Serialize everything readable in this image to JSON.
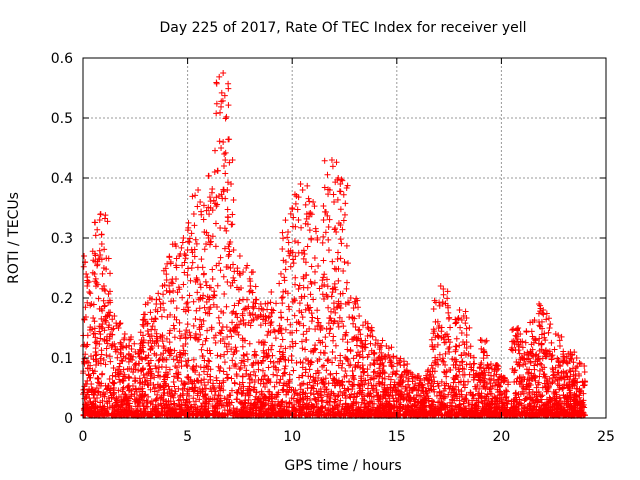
{
  "chart_data": {
    "type": "scatter",
    "title": "Day 225 of 2017, Rate Of TEC Index for receiver yell",
    "xlabel": "GPS time / hours",
    "ylabel": "ROTI / TECUs",
    "xlim": [
      0,
      25
    ],
    "ylim": [
      0,
      0.6
    ],
    "xticks": [
      0,
      5,
      10,
      15,
      20,
      25
    ],
    "yticks": [
      0,
      0.1,
      0.2,
      0.3,
      0.4,
      0.5,
      0.6
    ],
    "xtick_labels": [
      "0",
      "5",
      "10",
      "15",
      "20",
      "25"
    ],
    "ytick_labels": [
      "0",
      "0.1",
      "0.2",
      "0.3",
      "0.4",
      "0.5",
      "0.6"
    ],
    "grid": true,
    "marker": "+",
    "color": "#ff0000",
    "x_range_of_data": [
      0,
      24
    ],
    "points": [
      [
        0.0,
        0.12
      ],
      [
        0.05,
        0.27
      ],
      [
        0.1,
        0.26
      ],
      [
        0.15,
        0.24
      ],
      [
        0.2,
        0.22
      ],
      [
        0.3,
        0.21
      ],
      [
        0.4,
        0.19
      ],
      [
        0.5,
        0.14
      ],
      [
        0.6,
        0.11
      ],
      [
        0.8,
        0.33
      ],
      [
        0.85,
        0.34
      ],
      [
        0.9,
        0.29
      ],
      [
        1.0,
        0.25
      ],
      [
        1.0,
        0.22
      ],
      [
        1.1,
        0.16
      ],
      [
        1.3,
        0.14
      ],
      [
        1.5,
        0.17
      ],
      [
        1.7,
        0.15
      ],
      [
        2.0,
        0.14
      ],
      [
        2.2,
        0.12
      ],
      [
        2.5,
        0.11
      ],
      [
        2.8,
        0.13
      ],
      [
        3.0,
        0.16
      ],
      [
        3.2,
        0.2
      ],
      [
        3.5,
        0.19
      ],
      [
        3.8,
        0.22
      ],
      [
        4.0,
        0.23
      ],
      [
        4.2,
        0.26
      ],
      [
        4.4,
        0.29
      ],
      [
        4.6,
        0.27
      ],
      [
        4.8,
        0.3
      ],
      [
        5.0,
        0.28
      ],
      [
        5.2,
        0.25
      ],
      [
        5.3,
        0.34
      ],
      [
        5.5,
        0.38
      ],
      [
        5.6,
        0.36
      ],
      [
        5.8,
        0.31
      ],
      [
        6.0,
        0.3
      ],
      [
        6.1,
        0.35
      ],
      [
        6.3,
        0.41
      ],
      [
        6.5,
        0.37
      ],
      [
        6.6,
        0.45
      ],
      [
        6.7,
        0.46
      ],
      [
        6.75,
        0.44
      ],
      [
        6.8,
        0.43
      ],
      [
        6.9,
        0.38
      ],
      [
        6.7,
        0.575
      ],
      [
        7.0,
        0.29
      ],
      [
        7.2,
        0.28
      ],
      [
        7.5,
        0.27
      ],
      [
        7.8,
        0.25
      ],
      [
        8.0,
        0.22
      ],
      [
        8.5,
        0.19
      ],
      [
        9.0,
        0.21
      ],
      [
        9.5,
        0.2
      ],
      [
        9.7,
        0.26
      ],
      [
        9.8,
        0.31
      ],
      [
        10.0,
        0.35
      ],
      [
        10.2,
        0.37
      ],
      [
        10.3,
        0.33
      ],
      [
        10.4,
        0.39
      ],
      [
        10.5,
        0.38
      ],
      [
        10.7,
        0.34
      ],
      [
        11.0,
        0.36
      ],
      [
        11.2,
        0.3
      ],
      [
        11.5,
        0.33
      ],
      [
        11.8,
        0.38
      ],
      [
        11.9,
        0.43
      ],
      [
        12.0,
        0.36
      ],
      [
        12.1,
        0.31
      ],
      [
        12.2,
        0.4
      ],
      [
        12.3,
        0.39
      ],
      [
        12.5,
        0.26
      ],
      [
        12.8,
        0.2
      ],
      [
        13.2,
        0.17
      ],
      [
        13.5,
        0.16
      ],
      [
        14.0,
        0.13
      ],
      [
        14.5,
        0.12
      ],
      [
        15.0,
        0.1
      ],
      [
        15.5,
        0.09
      ],
      [
        16.0,
        0.07
      ],
      [
        16.5,
        0.08
      ],
      [
        17.0,
        0.15
      ],
      [
        17.1,
        0.22
      ],
      [
        17.2,
        0.19
      ],
      [
        17.5,
        0.08
      ],
      [
        18.0,
        0.18
      ],
      [
        18.2,
        0.17
      ],
      [
        18.5,
        0.09
      ],
      [
        19.0,
        0.13
      ],
      [
        19.5,
        0.09
      ],
      [
        20.0,
        0.07
      ],
      [
        20.8,
        0.15
      ],
      [
        20.9,
        0.14
      ],
      [
        21.0,
        0.1
      ],
      [
        21.5,
        0.16
      ],
      [
        21.8,
        0.19
      ],
      [
        22.0,
        0.18
      ],
      [
        22.3,
        0.15
      ],
      [
        22.6,
        0.14
      ],
      [
        22.8,
        0.12
      ],
      [
        23.0,
        0.1
      ],
      [
        23.3,
        0.11
      ],
      [
        23.6,
        0.1
      ],
      [
        23.8,
        0.09
      ],
      [
        24.0,
        0.06
      ]
    ]
  }
}
